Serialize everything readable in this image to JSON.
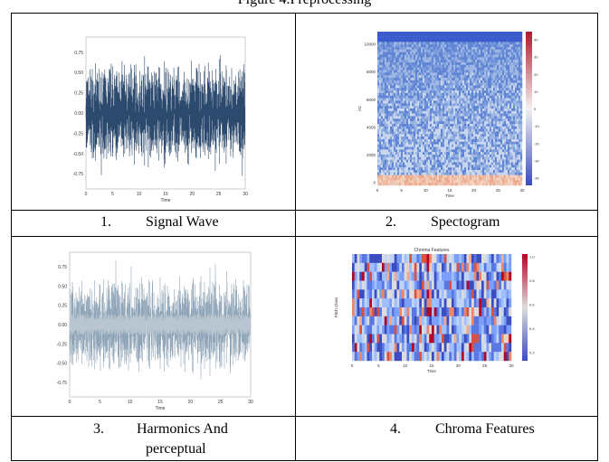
{
  "figure_caption": "Figure 4.Preprocessing",
  "panels": [
    {
      "number": "1.",
      "title": "Signal Wave",
      "plot_type": "waveform",
      "color": "#2c4a6e",
      "y_ticks": [
        "0.75",
        "0.50",
        "0.25",
        "0.00",
        "-0.25",
        "-0.50",
        "-0.75"
      ],
      "x_ticks": [
        "0",
        "5",
        "10",
        "15",
        "20",
        "25",
        "30"
      ],
      "xlabel": "Time"
    },
    {
      "number": "2.",
      "title": "Spectogram",
      "plot_type": "spectrogram",
      "y_ticks": [
        "10000",
        "8000",
        "6000",
        "4000",
        "2000",
        "0"
      ],
      "x_ticks": [
        "0",
        "5",
        "10",
        "15",
        "20",
        "25",
        "30"
      ],
      "xlabel": "Time",
      "ylabel": "Hz",
      "colorbar_ticks": [
        "40",
        "30",
        "20",
        "10",
        "0",
        "-10",
        "-20",
        "-30",
        "-40"
      ]
    },
    {
      "number": "3.",
      "title": "Harmonics And",
      "title_line2": "perceptual",
      "plot_type": "waveform",
      "color": "#8fa5b8",
      "y_ticks": [
        "0.75",
        "0.50",
        "0.25",
        "0.00",
        "-0.25",
        "-0.50",
        "-0.75"
      ],
      "x_ticks": [
        "0",
        "5",
        "10",
        "15",
        "20",
        "25",
        "30"
      ],
      "xlabel": "Time"
    },
    {
      "number": "4.",
      "title": "Chroma Features",
      "plot_type": "chroma",
      "plot_title": "Chroma Features",
      "ylabel": "Pitch Class",
      "x_ticks": [
        "0",
        "5",
        "10",
        "15",
        "20",
        "25",
        "30"
      ],
      "xlabel": "Time",
      "colorbar_ticks": [
        "1.0",
        "0.8",
        "0.6",
        "0.4",
        "0.2"
      ]
    }
  ]
}
